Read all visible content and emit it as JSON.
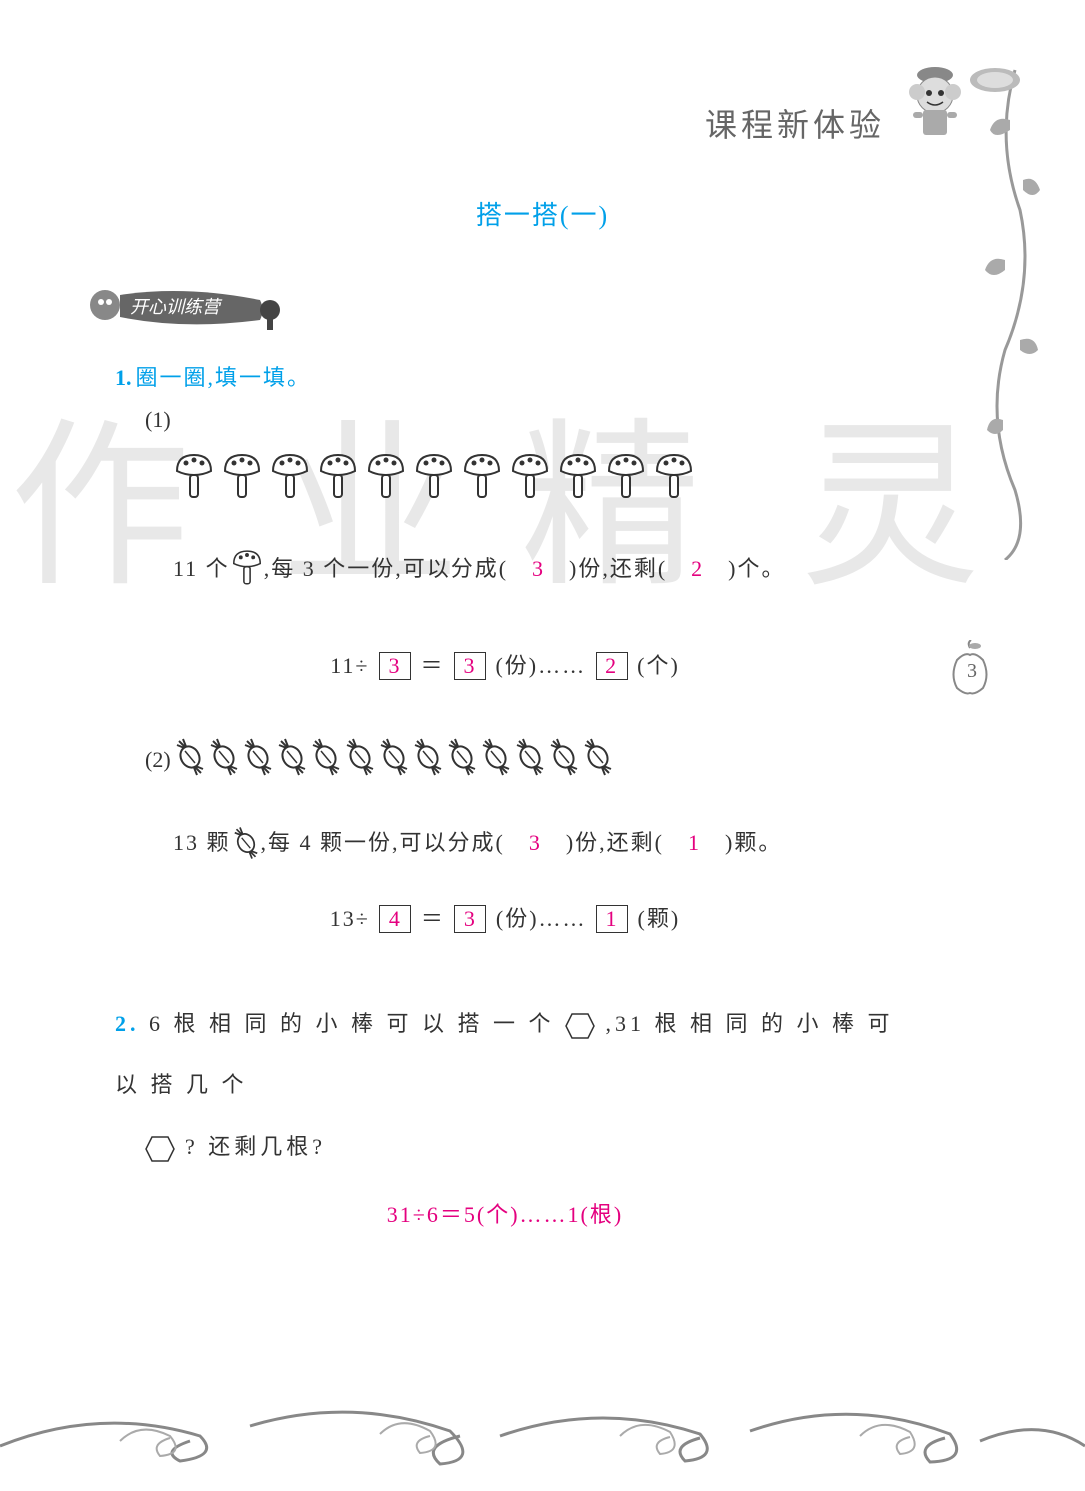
{
  "header": {
    "title": "课程新体验"
  },
  "subtitle": "搭一搭(一)",
  "banner": {
    "text": "开心训练营"
  },
  "page_number": "3",
  "q1": {
    "number": "1.",
    "title": "圈一圈,填一填。",
    "part1": {
      "label": "(1)",
      "mushroom_count": 11,
      "text_prefix": "11 个",
      "text_mid": ",每 3 个一份,可以分成(　",
      "answer_groups": "3",
      "text_mid2": "　)份,还剩(　",
      "answer_remain": "2",
      "text_suffix": "　)个。",
      "eq_prefix": "11÷",
      "eq_divisor": "3",
      "eq_equals": "＝",
      "eq_quotient": "3",
      "eq_unit1": "(份)……",
      "eq_remainder": "2",
      "eq_unit2": "(个)"
    },
    "part2": {
      "label": "(2)",
      "candy_count": 13,
      "text_prefix": "13 颗",
      "text_mid": ",每 4 颗一份,可以分成(　",
      "answer_groups": "3",
      "text_mid2": "　)份,还剩(　",
      "answer_remain": "1",
      "text_suffix": "　)颗。",
      "eq_prefix": "13÷",
      "eq_divisor": "4",
      "eq_equals": "＝",
      "eq_quotient": "3",
      "eq_unit1": "(份)……",
      "eq_remainder": "1",
      "eq_unit2": "(颗)"
    }
  },
  "q2": {
    "number": "2.",
    "text1": "6 根 相 同 的 小 棒 可 以 搭 一 个",
    "text2": ",31 根 相 同 的 小 棒 可 以 搭 几 个",
    "text3": "? 还剩几根?",
    "answer": "31÷6＝5(个)……1(根)"
  },
  "colors": {
    "blue": "#00a0e9",
    "magenta": "#e4007f",
    "gray_text": "#666",
    "black_text": "#333",
    "watermark": "#e8e8e8"
  },
  "watermark_chars": [
    "作",
    "业",
    "精",
    "灵"
  ]
}
